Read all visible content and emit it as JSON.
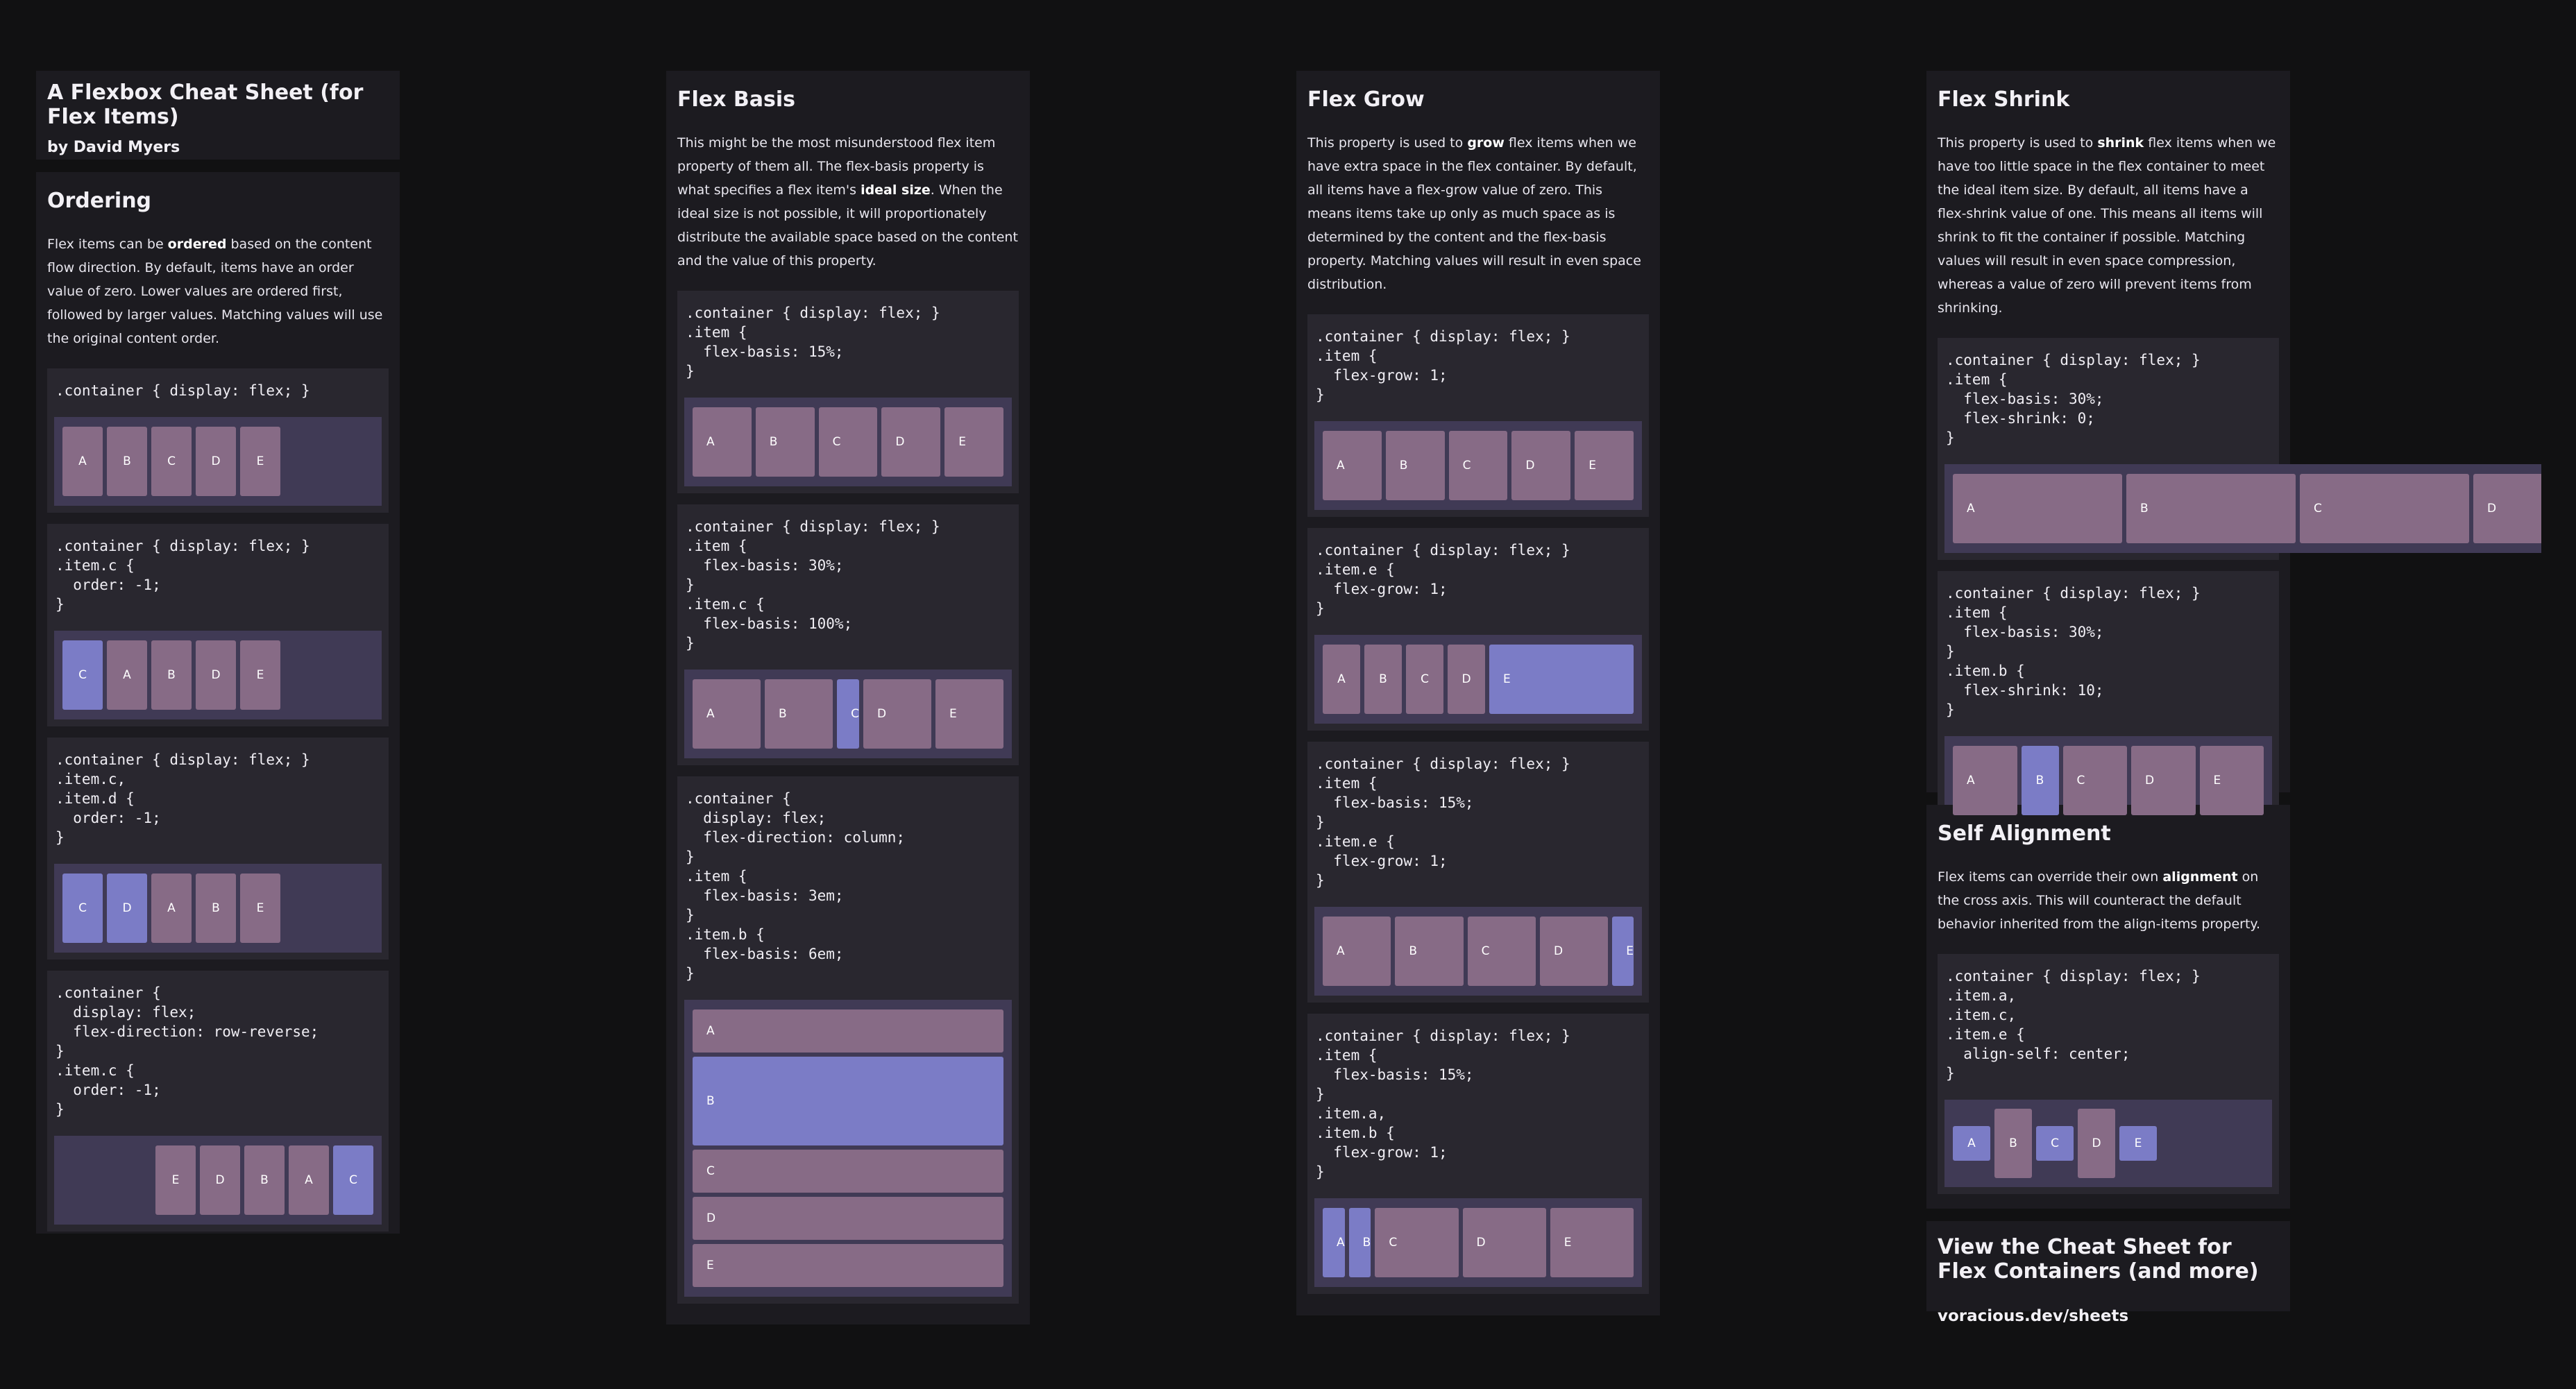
{
  "header": {
    "title": "A Flexbox Cheat Sheet (for Flex Items)",
    "byline": "by David Myers"
  },
  "ordering": {
    "title": "Ordering",
    "description_parts": [
      "Flex items can be ",
      "ordered",
      " based on the content flow direction. By default, items have an order value of zero. Lower values are ordered first, followed by larger values. Matching values will use the original content order."
    ],
    "examples": [
      {
        "code": ".container { display: flex; }",
        "items": [
          "A",
          "B",
          "C",
          "D",
          "E"
        ]
      },
      {
        "code": ".container { display: flex; }\n.item.c {\n  order: -1;\n}",
        "items": [
          "C",
          "A",
          "B",
          "D",
          "E"
        ]
      },
      {
        "code": ".container { display: flex; }\n.item.c,\n.item.d {\n  order: -1;\n}",
        "items": [
          "C",
          "D",
          "A",
          "B",
          "E"
        ]
      },
      {
        "code": ".container {\n  display: flex;\n  flex-direction: row-reverse;\n}\n.item.c {\n  order: -1;\n}",
        "items": [
          "E",
          "D",
          "B",
          "A",
          "C"
        ]
      }
    ]
  },
  "flex_basis": {
    "title": "Flex Basis",
    "description_parts": [
      "This might be the most misunderstood flex item property of them all. The flex-basis property is what specifies a flex item's ",
      "ideal size",
      ". When the ideal size is not possible, it will proportionately distribute the available space based on the content and the value of this property."
    ],
    "examples": [
      {
        "code": ".container { display: flex; }\n.item {\n  flex-basis: 15%;\n}",
        "items": [
          "A",
          "B",
          "C",
          "D",
          "E"
        ]
      },
      {
        "code": ".container { display: flex; }\n.item {\n  flex-basis: 30%;\n}\n.item.c {\n  flex-basis: 100%;\n}",
        "items": [
          "A",
          "B",
          "C",
          "D",
          "E"
        ]
      },
      {
        "code": ".container {\n  display: flex;\n  flex-direction: column;\n}\n.item {\n  flex-basis: 3em;\n}\n.item.b {\n  flex-basis: 6em;\n}",
        "items": [
          "A",
          "B",
          "C",
          "D",
          "E"
        ]
      }
    ]
  },
  "flex_grow": {
    "title": "Flex Grow",
    "description_parts": [
      "This property is used to ",
      "grow",
      " flex items when we have extra space in the flex container. By default, all items have a flex-grow value of zero. This means items take up only as much space as is determined by the content and the flex-basis property. Matching values will result in even space distribution."
    ],
    "examples": [
      {
        "code": ".container { display: flex; }\n.item {\n  flex-grow: 1;\n}",
        "items": [
          "A",
          "B",
          "C",
          "D",
          "E"
        ]
      },
      {
        "code": ".container { display: flex; }\n.item.e {\n  flex-grow: 1;\n}",
        "items": [
          "A",
          "B",
          "C",
          "D",
          "E"
        ]
      },
      {
        "code": ".container { display: flex; }\n.item {\n  flex-basis: 15%;\n}\n.item.e {\n  flex-grow: 1;\n}",
        "items": [
          "A",
          "B",
          "C",
          "D",
          "E"
        ]
      },
      {
        "code": ".container { display: flex; }\n.item {\n  flex-basis: 15%;\n}\n.item.a,\n.item.b {\n  flex-grow: 1;\n}",
        "items": [
          "A",
          "B",
          "C",
          "D",
          "E"
        ]
      }
    ]
  },
  "flex_shrink": {
    "title": "Flex Shrink",
    "description_parts": [
      "This property is used to ",
      "shrink",
      " flex items when we have too little space in the flex container to meet the ideal item size. By default, all items have a flex-shrink value of one. This means all items will shrink to fit the container if possible. Matching values will result in even space compression, whereas a value of zero will prevent items from shrinking."
    ],
    "examples": [
      {
        "code": ".container { display: flex; }\n.item {\n  flex-basis: 30%;\n  flex-shrink: 0;\n}",
        "items": [
          "A",
          "B",
          "C",
          "D"
        ]
      },
      {
        "code": ".container { display: flex; }\n.item {\n  flex-basis: 30%;\n}\n.item.b {\n  flex-shrink: 10;\n}",
        "items": [
          "A",
          "B",
          "C",
          "D",
          "E"
        ]
      }
    ]
  },
  "self_alignment": {
    "title": "Self Alignment",
    "description_parts": [
      "Flex items can override their own ",
      "alignment",
      " on the cross axis. This will counteract the default behavior inherited from the align-items property."
    ],
    "examples": [
      {
        "code": ".container { display: flex; }\n.item.a,\n.item.c,\n.item.e {\n  align-self: center;\n}",
        "items": [
          "A",
          "B",
          "C",
          "D",
          "E"
        ]
      }
    ]
  },
  "footer_link": {
    "title": "View the Cheat Sheet for Flex Containers (and more)",
    "url": "voracious.dev/sheets"
  },
  "colors": {
    "background": "#111112",
    "panel": "#1c1b20",
    "code_bg": "#29272f",
    "demo_bg": "#403a55",
    "item": "#876b86",
    "item_highlight": "#7b7cc6"
  }
}
